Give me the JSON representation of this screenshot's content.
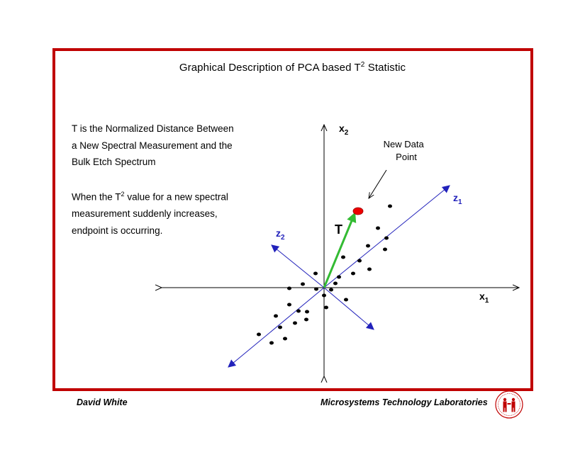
{
  "slide": {
    "title_main": "Graphical Description of PCA based T",
    "title_sup": "2",
    "title_end": " Statistic",
    "description_lines": [
      "T is the Normalized Distance Between",
      "a New Spectral Measurement and the",
      "Bulk Etch Spectrum"
    ],
    "condition_line1_pre": "When the T",
    "condition_line1_sup": "2",
    "condition_line1_post": " value for a new spectral",
    "condition_lines_rest": [
      "measurement suddenly increases,",
      "endpoint is occurring."
    ]
  },
  "diagram": {
    "axis_x1_main": "x",
    "axis_x1_sub": "1",
    "axis_x2_main": "x",
    "axis_x2_sub": "2",
    "axis_z1_main": "z",
    "axis_z1_sub": "1",
    "axis_z2_main": "z",
    "axis_z2_sub": "2",
    "t_label": "T",
    "new_point_label_line1": "New Data",
    "new_point_label_line2": "Point",
    "colors": {
      "axes": "#000000",
      "pc_axes": "#2222bb",
      "pc_labels": "#2222bb",
      "t_vector": "#33bb33",
      "new_point": "#ee0000",
      "frame": "#c00000"
    }
  },
  "footer": {
    "author": "David White",
    "lab": "Microsystems Technology Laboratories"
  }
}
